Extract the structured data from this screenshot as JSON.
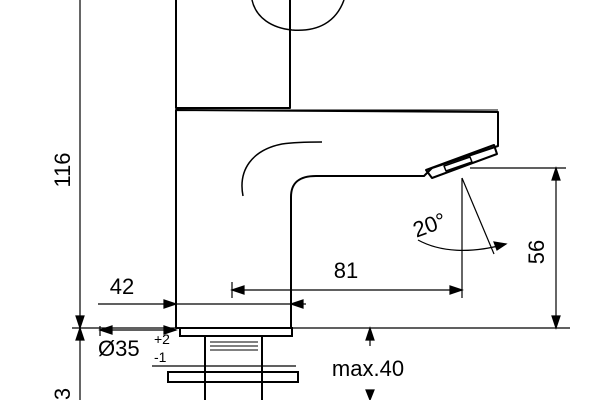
{
  "dimensions": {
    "total_height": "116",
    "spout_height": "56",
    "spout_reach": "81",
    "body_depth": "42",
    "flow_angle": "20°",
    "hole_diameter": "Ø35",
    "hole_tol_upper": "+2",
    "hole_tol_lower": "-1",
    "deck_thickness": "max.40",
    "tail_length_partial": "3"
  }
}
